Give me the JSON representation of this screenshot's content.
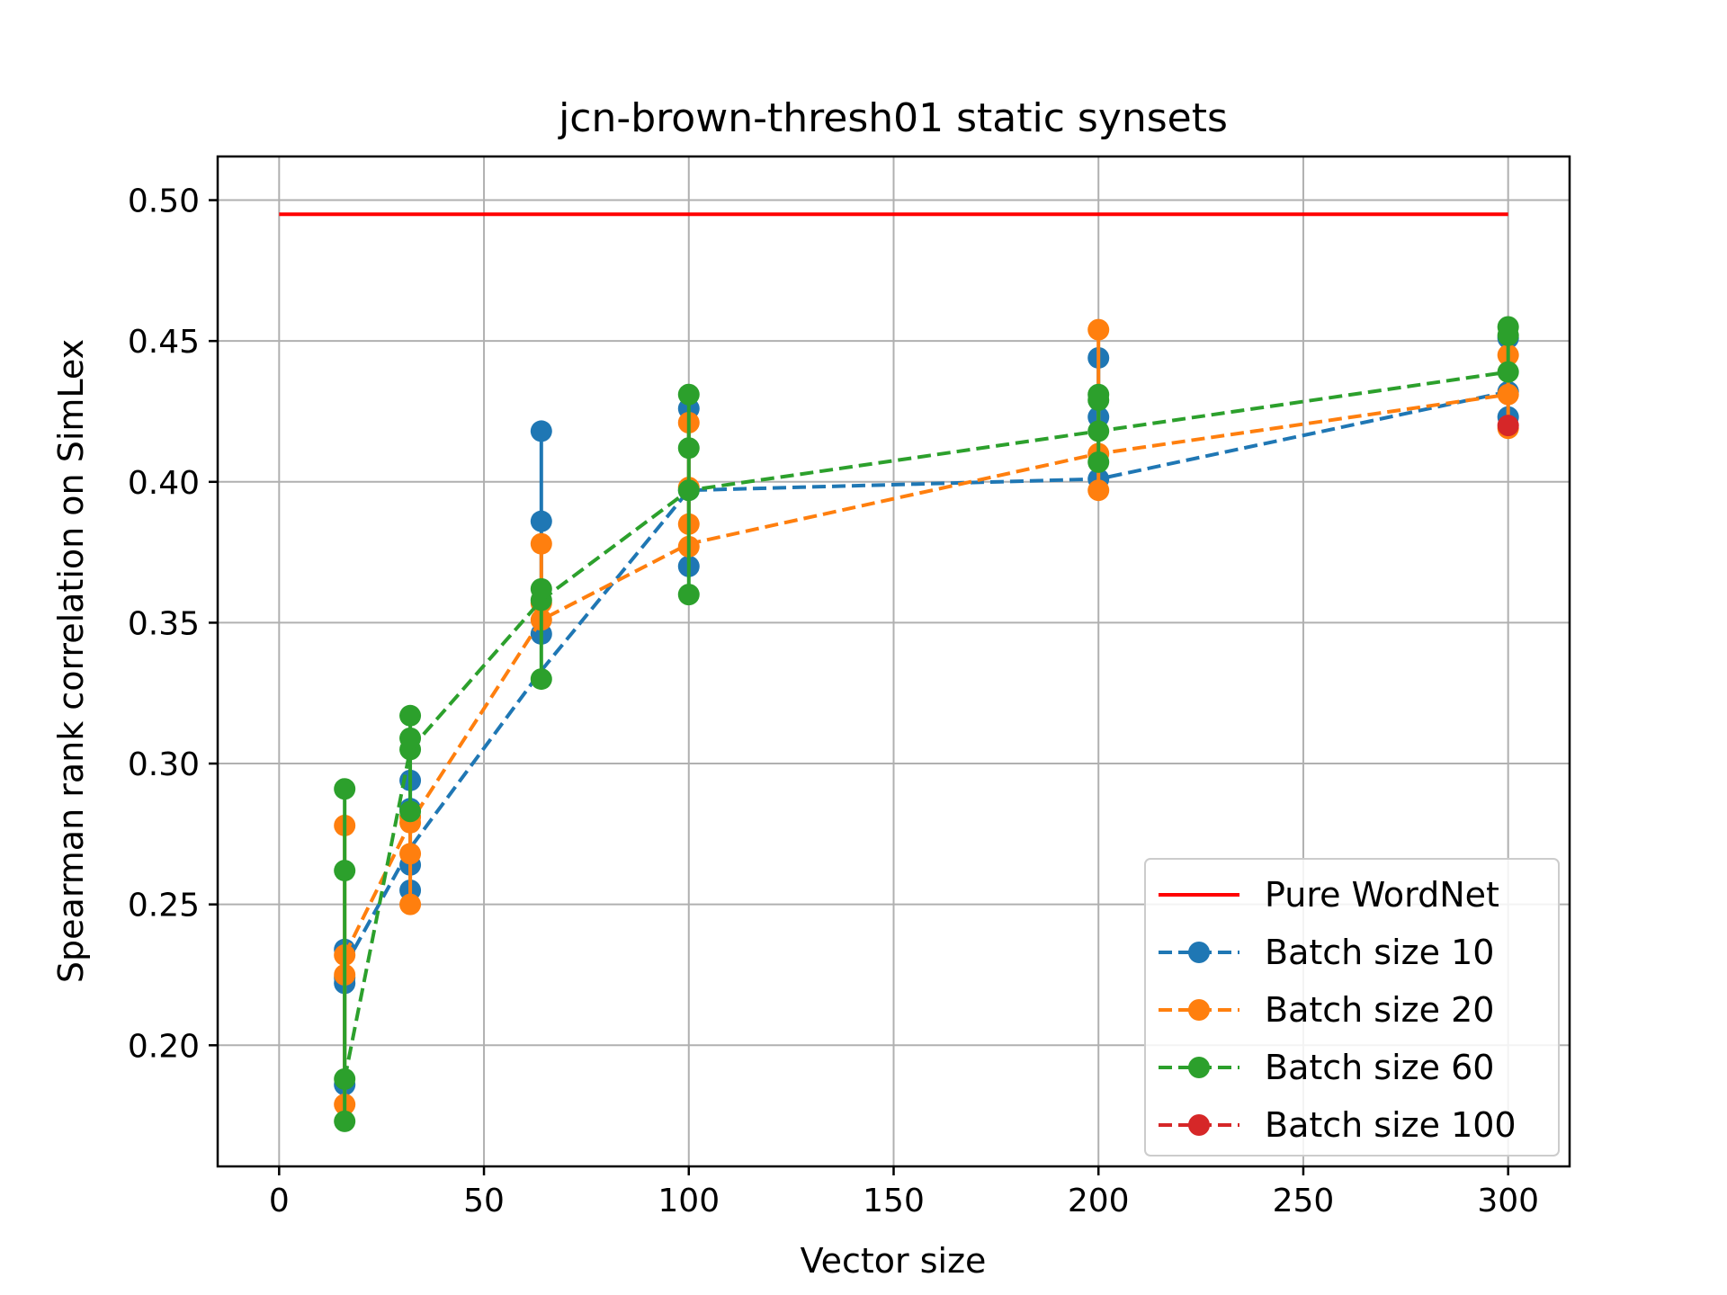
{
  "chart_data": {
    "type": "line",
    "title": "jcn-brown-thresh01 static synsets",
    "xlabel": "Vector size",
    "ylabel": "Spearman rank correlation on SimLex",
    "xlim": [
      -15,
      315
    ],
    "ylim": [
      0.157,
      0.5155
    ],
    "xticks": [
      0,
      50,
      100,
      150,
      200,
      250,
      300
    ],
    "xtick_labels": [
      "0",
      "50",
      "100",
      "150",
      "200",
      "250",
      "300"
    ],
    "yticks": [
      0.2,
      0.25,
      0.3,
      0.35,
      0.4,
      0.45,
      0.5
    ],
    "ytick_labels": [
      "0.20",
      "0.25",
      "0.30",
      "0.35",
      "0.40",
      "0.45",
      "0.50"
    ],
    "grid": true,
    "legend_position": "lower-right",
    "series": [
      {
        "name": "Pure WordNet",
        "style": "solid-line",
        "color": "#ff0000",
        "x": [
          0,
          300
        ],
        "y": [
          0.495,
          0.495
        ]
      },
      {
        "name": "Batch size 10",
        "style": "dashed-markers",
        "color": "#1f77b4",
        "x": [
          16,
          32,
          64,
          100,
          200,
          300
        ],
        "y": [
          0.228,
          0.27,
          0.333,
          0.397,
          0.401,
          0.432
        ],
        "points": [
          {
            "x": 16,
            "values": [
              0.186,
              0.222,
              0.224,
              0.234
            ]
          },
          {
            "x": 32,
            "values": [
              0.255,
              0.264,
              0.284,
              0.294
            ]
          },
          {
            "x": 64,
            "values": [
              0.346,
              0.386,
              0.418
            ]
          },
          {
            "x": 100,
            "values": [
              0.37,
              0.397,
              0.426
            ]
          },
          {
            "x": 200,
            "values": [
              0.401,
              0.423,
              0.444
            ]
          },
          {
            "x": 300,
            "values": [
              0.423,
              0.432,
              0.451
            ]
          }
        ]
      },
      {
        "name": "Batch size 20",
        "style": "dashed-markers",
        "color": "#ff7f0e",
        "x": [
          16,
          32,
          64,
          100,
          200,
          300
        ],
        "y": [
          0.232,
          0.279,
          0.351,
          0.378,
          0.41,
          0.431
        ],
        "points": [
          {
            "x": 16,
            "values": [
              0.179,
              0.225,
              0.232,
              0.278
            ]
          },
          {
            "x": 32,
            "values": [
              0.25,
              0.268,
              0.279,
              0.281
            ]
          },
          {
            "x": 64,
            "values": [
              0.351,
              0.357,
              0.378
            ]
          },
          {
            "x": 100,
            "values": [
              0.377,
              0.385,
              0.398,
              0.421
            ]
          },
          {
            "x": 200,
            "values": [
              0.397,
              0.41,
              0.454
            ]
          },
          {
            "x": 300,
            "values": [
              0.419,
              0.431,
              0.445
            ]
          }
        ]
      },
      {
        "name": "Batch size 60",
        "style": "dashed-markers",
        "color": "#2ca02c",
        "x": [
          16,
          32,
          64,
          100,
          200,
          300
        ],
        "y": [
          0.188,
          0.305,
          0.358,
          0.397,
          0.418,
          0.439
        ],
        "points": [
          {
            "x": 16,
            "values": [
              0.173,
              0.188,
              0.262,
              0.291
            ]
          },
          {
            "x": 32,
            "values": [
              0.283,
              0.305,
              0.309,
              0.317
            ]
          },
          {
            "x": 64,
            "values": [
              0.33,
              0.358,
              0.362
            ]
          },
          {
            "x": 100,
            "values": [
              0.36,
              0.397,
              0.412,
              0.431
            ]
          },
          {
            "x": 200,
            "values": [
              0.407,
              0.418,
              0.429,
              0.431
            ]
          },
          {
            "x": 300,
            "values": [
              0.439,
              0.452,
              0.455
            ]
          }
        ]
      },
      {
        "name": "Batch size 100",
        "style": "dashed-markers",
        "color": "#d62728",
        "x": [
          300
        ],
        "y": [
          0.42
        ],
        "points": [
          {
            "x": 300,
            "values": [
              0.42
            ]
          }
        ]
      }
    ]
  }
}
